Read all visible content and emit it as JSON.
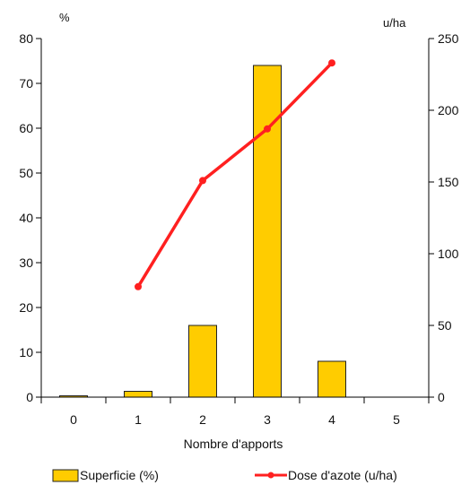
{
  "chart_data": {
    "type": "bar+line",
    "categories": [
      "0",
      "1",
      "2",
      "3",
      "4",
      "5"
    ],
    "xlabel": "Nombre d'apports",
    "y_left": {
      "unit_label": "%",
      "ylim": [
        0,
        80
      ],
      "ticks": [
        "0",
        "10",
        "20",
        "30",
        "40",
        "50",
        "60",
        "70",
        "80"
      ]
    },
    "y_right": {
      "unit_label": "u/ha",
      "ylim": [
        0,
        250
      ],
      "ticks": [
        "0",
        "50",
        "100",
        "150",
        "200",
        "250"
      ]
    },
    "series": [
      {
        "name": "Superficie (%)",
        "kind": "bar",
        "axis": "left",
        "color": "#ffcc00",
        "values": [
          0.3,
          1.3,
          16,
          74,
          8,
          0
        ]
      },
      {
        "name": "Dose d'azote (u/ha)",
        "kind": "line",
        "axis": "right",
        "color": "#ff2020",
        "values": [
          null,
          77,
          151,
          187,
          233,
          null
        ]
      }
    ],
    "grid": false,
    "legend_position": "bottom"
  }
}
